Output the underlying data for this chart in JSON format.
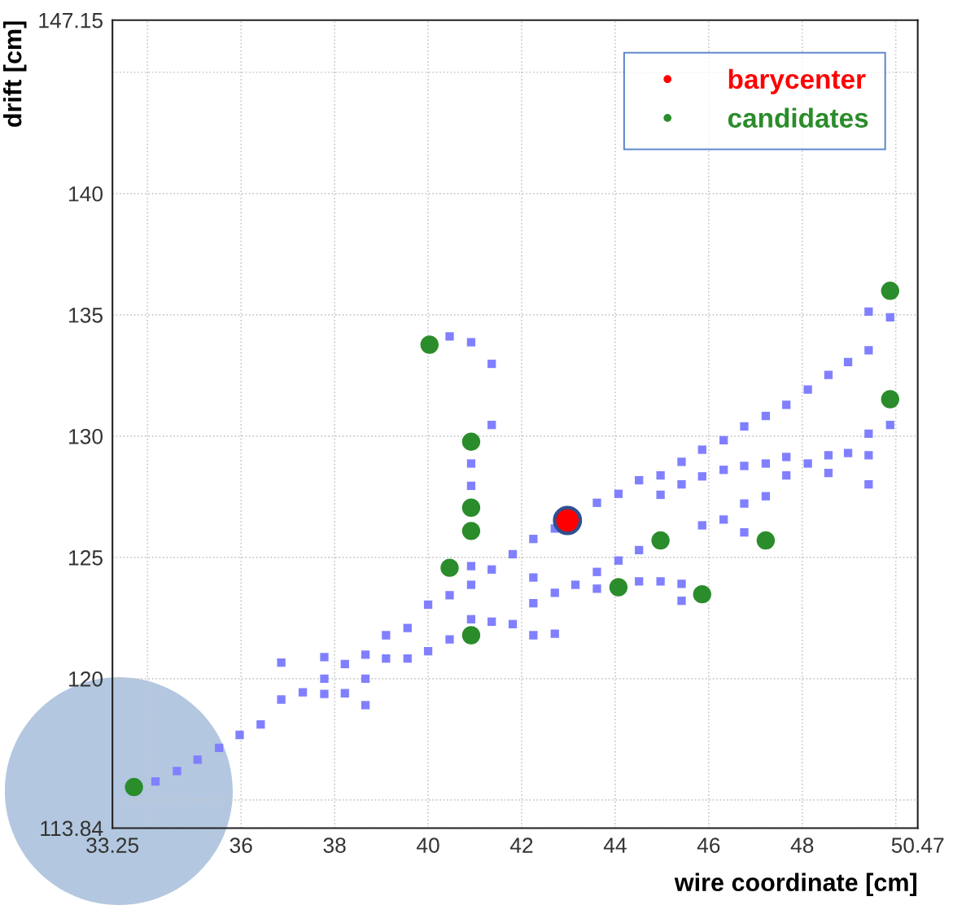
{
  "chart_data": {
    "type": "scatter",
    "xlabel": "wire coordinate [cm]",
    "ylabel": "drift [cm]",
    "xlim": [
      33.25,
      50.47
    ],
    "ylim": [
      113.84,
      147.15
    ],
    "xticks": [
      33.25,
      {
        "value": 34,
        "label": null
      },
      36,
      38,
      40,
      42,
      44,
      46,
      48,
      {
        "value": 50,
        "label": null
      },
      50.47
    ],
    "yticks": [
      113.84,
      {
        "value": 115,
        "label": null
      },
      120,
      125,
      130,
      135,
      140,
      {
        "value": 145,
        "label": null
      },
      147.15
    ],
    "grid": true,
    "legend": "top right",
    "series": [
      {
        "color": "#8080ff",
        "marker": "square",
        "x": [
          34.17,
          34.63,
          35.07,
          35.53,
          35.97,
          36.42,
          36.86,
          36.86,
          37.32,
          37.78,
          37.78,
          37.78,
          38.22,
          38.22,
          38.66,
          38.66,
          38.66,
          39.1,
          39.1,
          39.56,
          39.56,
          40.0,
          40.0,
          40.46,
          40.46,
          40.92,
          40.92,
          40.92,
          40.92,
          40.92,
          40.46,
          40.92,
          41.36,
          41.36,
          41.36,
          41.36,
          41.81,
          41.81,
          42.25,
          42.25,
          42.25,
          42.25,
          42.71,
          42.71,
          42.71,
          43.15,
          43.61,
          43.61,
          43.61,
          44.07,
          44.07,
          44.51,
          44.51,
          44.51,
          44.97,
          44.97,
          44.97,
          45.42,
          45.42,
          45.42,
          45.42,
          45.86,
          45.86,
          45.86,
          46.32,
          46.32,
          46.32,
          46.76,
          46.76,
          46.76,
          46.76,
          47.22,
          47.22,
          47.22,
          47.66,
          47.66,
          47.66,
          48.12,
          48.12,
          48.56,
          48.56,
          48.56,
          48.98,
          48.98,
          49.42,
          49.42,
          49.42,
          49.42,
          49.42,
          49.88,
          49.88
        ],
        "values": [
          115.76,
          116.19,
          116.66,
          117.15,
          117.68,
          118.11,
          119.14,
          120.66,
          119.44,
          119.37,
          120.0,
          120.89,
          119.4,
          120.6,
          118.91,
          120.0,
          120.99,
          120.83,
          121.79,
          120.83,
          122.09,
          121.13,
          123.05,
          121.62,
          123.44,
          122.45,
          123.87,
          124.64,
          128.87,
          127.95,
          134.11,
          133.87,
          132.98,
          130.46,
          124.5,
          122.35,
          122.25,
          125.13,
          125.76,
          124.17,
          123.11,
          121.79,
          126.19,
          123.54,
          121.85,
          123.87,
          127.25,
          124.4,
          123.71,
          127.62,
          124.87,
          128.18,
          125.3,
          124.01,
          128.38,
          127.58,
          124.01,
          128.94,
          128.01,
          123.91,
          123.21,
          129.44,
          128.34,
          126.32,
          129.83,
          128.61,
          126.56,
          130.4,
          128.77,
          127.22,
          126.03,
          130.83,
          128.87,
          127.52,
          131.29,
          129.14,
          128.38,
          131.92,
          128.87,
          132.52,
          129.21,
          128.48,
          133.05,
          129.3,
          133.54,
          129.21,
          128.01,
          130.1,
          135.13,
          134.9,
          130.46
        ]
      },
      {
        "name": "candidates",
        "color": "#2a8c2a",
        "marker": "circle",
        "x": [
          33.71,
          40.03,
          40.92,
          40.92,
          40.92,
          40.46,
          40.92,
          44.07,
          44.97,
          45.86,
          47.22,
          49.88,
          49.88
        ],
        "values": [
          115.53,
          133.77,
          129.77,
          127.05,
          126.09,
          124.57,
          121.79,
          123.77,
          125.7,
          123.48,
          125.7,
          135.99,
          131.52
        ]
      },
      {
        "name": "barycenter",
        "color": "#ff0000",
        "marker": "circle",
        "x": [
          42.98
        ],
        "values": [
          126.52
        ]
      }
    ]
  }
}
